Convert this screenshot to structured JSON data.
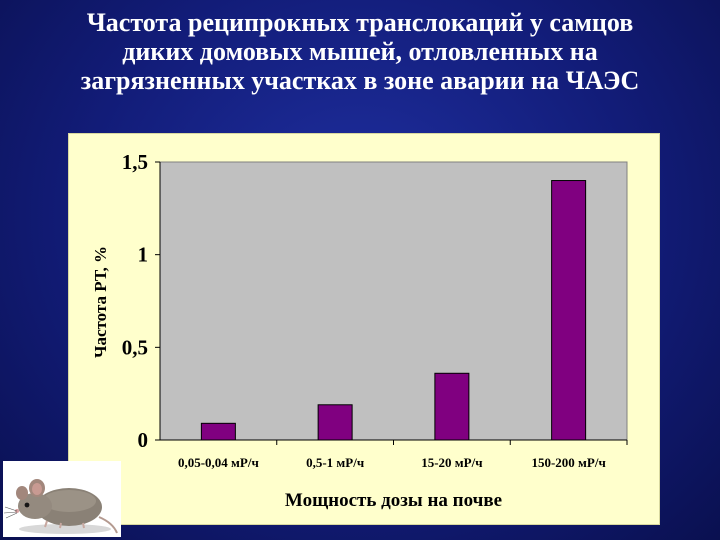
{
  "title_lines": [
    "Частота реципрокных транслокаций у самцов",
    "диких домовых мышей, отловленных на",
    "загрязненных участках в зоне аварии на ЧАЭС"
  ],
  "colors": {
    "background": "#121c78",
    "chart_panel": "#ffffcc",
    "plot_area": "#c0c0c0",
    "bar": "#800080",
    "text": "#000000"
  },
  "image": {
    "icon": "mouse-photo-icon"
  },
  "chart_data": {
    "type": "bar",
    "categories": [
      "0,05-0,04 мР/ч",
      "0,5-1 мР/ч",
      "15-20 мР/ч",
      "150-200 мР/ч"
    ],
    "values": [
      0.09,
      0.19,
      0.36,
      1.4
    ],
    "xlabel": "Мощность дозы на почве",
    "ylabel": "Частота РТ, %",
    "ylim": [
      0,
      1.5
    ],
    "yticks": [
      "0",
      "0,5",
      "1",
      "1,5"
    ],
    "ytick_values": [
      0,
      0.5,
      1,
      1.5
    ],
    "grid": false,
    "legend": "none"
  }
}
